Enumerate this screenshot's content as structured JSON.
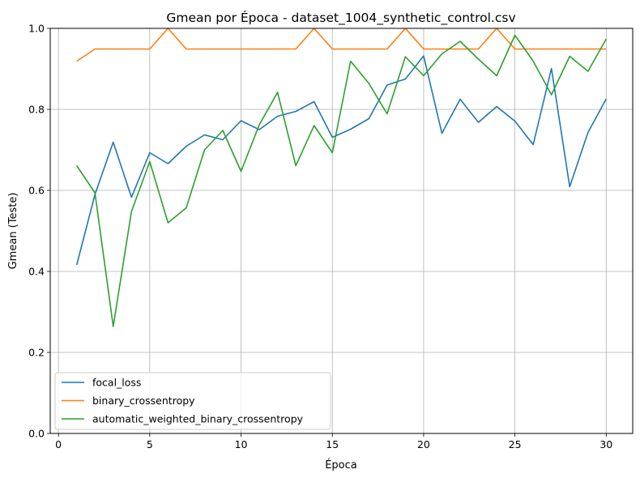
{
  "chart_data": {
    "type": "line",
    "title": "Gmean por Época - dataset_1004_synthetic_control.csv",
    "xlabel": "Época",
    "ylabel": "Gmean (Teste)",
    "xlim": [
      -0.45,
      31.45
    ],
    "ylim": [
      0.0,
      1.0
    ],
    "x_ticks": [
      0,
      5,
      10,
      15,
      20,
      25,
      30
    ],
    "x_tick_labels": [
      "0",
      "5",
      "10",
      "15",
      "20",
      "25",
      "30"
    ],
    "y_ticks": [
      0.0,
      0.2,
      0.4,
      0.6,
      0.8,
      1.0
    ],
    "y_tick_labels": [
      "0.0",
      "0.2",
      "0.4",
      "0.6",
      "0.8",
      "1.0"
    ],
    "grid": true,
    "legend_position": "lower-left",
    "x": [
      1,
      2,
      3,
      4,
      5,
      6,
      7,
      8,
      9,
      10,
      11,
      12,
      13,
      14,
      15,
      16,
      17,
      18,
      19,
      20,
      21,
      22,
      23,
      24,
      25,
      26,
      27,
      28,
      29,
      30
    ],
    "series": [
      {
        "name": "focal_loss",
        "color": "#1f77b4",
        "values": [
          0.416,
          0.59,
          0.719,
          0.583,
          0.693,
          0.666,
          0.709,
          0.737,
          0.725,
          0.772,
          0.75,
          0.783,
          0.795,
          0.819,
          0.731,
          0.751,
          0.777,
          0.86,
          0.875,
          0.932,
          0.741,
          0.825,
          0.768,
          0.807,
          0.771,
          0.713,
          0.901,
          0.609,
          0.743,
          0.826
        ]
      },
      {
        "name": "binary_crossentropy",
        "color": "#ff7f0e",
        "values": [
          0.919,
          0.949,
          0.949,
          0.949,
          0.949,
          1.0,
          0.949,
          0.949,
          0.949,
          0.949,
          0.949,
          0.949,
          0.949,
          1.0,
          0.949,
          0.949,
          0.949,
          0.949,
          1.0,
          0.949,
          0.949,
          0.949,
          0.949,
          1.0,
          0.949,
          0.949,
          0.949,
          0.949,
          0.949,
          0.949
        ]
      },
      {
        "name": "automatic_weighted_binary_crossentropy",
        "color": "#2ca02c",
        "values": [
          0.661,
          0.594,
          0.264,
          0.548,
          0.671,
          0.52,
          0.557,
          0.7,
          0.748,
          0.647,
          0.762,
          0.842,
          0.661,
          0.76,
          0.693,
          0.919,
          0.864,
          0.789,
          0.93,
          0.883,
          0.937,
          0.968,
          0.924,
          0.883,
          0.983,
          0.919,
          0.836,
          0.931,
          0.894,
          0.974
        ]
      }
    ]
  }
}
